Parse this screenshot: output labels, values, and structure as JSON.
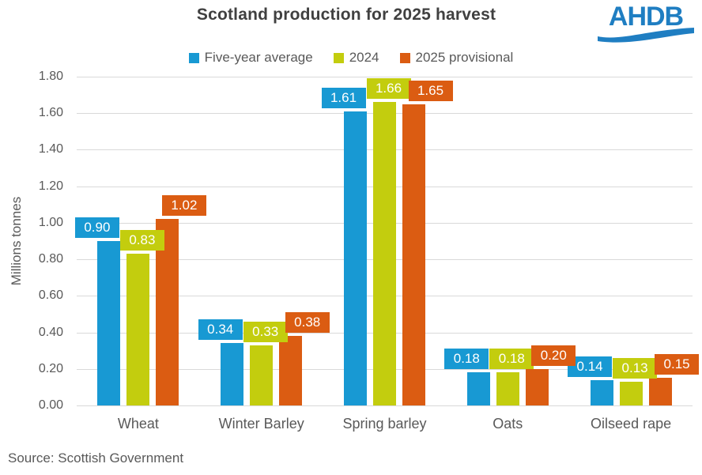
{
  "title": "Scotland production for 2025 harvest",
  "logo": {
    "text": "AHDB"
  },
  "source": "Source: Scottish Government",
  "colors": {
    "series_blue": "#1899D3",
    "series_green": "#C3CD0E",
    "series_orange": "#DB5C12",
    "logo_blue": "#1F7EC2",
    "gridline": "#D9D9D9",
    "title_text": "#404040",
    "axis_text": "#595959",
    "data_label_text": "#FFFFFF"
  },
  "chart_data": {
    "type": "bar",
    "title": "Scotland production for 2025 harvest",
    "categories": [
      "Wheat",
      "Winter Barley",
      "Spring barley",
      "Oats",
      "Oilseed rape"
    ],
    "series": [
      {
        "name": "Five-year average",
        "color": "#1899D3",
        "values": [
          0.9,
          0.34,
          1.61,
          0.18,
          0.14
        ]
      },
      {
        "name": "2024",
        "color": "#C3CD0E",
        "values": [
          0.83,
          0.33,
          1.66,
          0.18,
          0.13
        ]
      },
      {
        "name": "2025 provisional",
        "color": "#DB5C12",
        "values": [
          1.02,
          0.38,
          1.65,
          0.2,
          0.15
        ]
      }
    ],
    "xlabel": "",
    "ylabel": "Millions tonnes",
    "ylim": [
      0,
      1.8
    ],
    "ytick_step": 0.2,
    "yticks": [
      "0.00",
      "0.20",
      "0.40",
      "0.60",
      "0.80",
      "1.00",
      "1.20",
      "1.40",
      "1.60",
      "1.80"
    ],
    "grid": true,
    "legend_position": "top",
    "value_labels": "outside-end, 2 decimals, boxed in series color",
    "source_note": "Source: Scottish Government"
  }
}
